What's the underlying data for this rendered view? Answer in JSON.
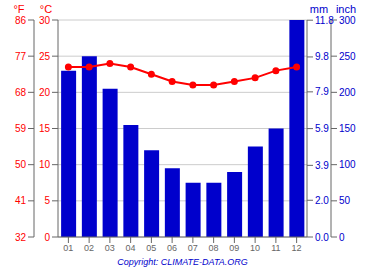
{
  "chart_data": {
    "type": "bar",
    "categories": [
      "01",
      "02",
      "03",
      "04",
      "05",
      "06",
      "07",
      "08",
      "09",
      "10",
      "11",
      "12"
    ],
    "series": [
      {
        "type": "bar",
        "color": "#0000cc",
        "axis": "y2",
        "values": [
          230,
          250,
          205,
          155,
          120,
          95,
          75,
          75,
          90,
          125,
          150,
          300
        ]
      },
      {
        "type": "line",
        "color": "#ff0000",
        "marker": "circle",
        "values": [
          23.5,
          23.5,
          24.0,
          23.5,
          22.5,
          21.5,
          21.0,
          21.0,
          21.5,
          22.0,
          23.0,
          23.5
        ]
      }
    ],
    "ylabel": "°C",
    "ylim": [
      0,
      30
    ],
    "yticks": [
      0,
      5,
      10,
      15,
      20,
      25,
      30
    ],
    "y2label": "mm",
    "y2lim": [
      0,
      300
    ],
    "y2ticks": [
      0,
      50,
      100,
      150,
      200,
      250,
      300
    ],
    "y3label": "°F",
    "y3lim": [
      32,
      86
    ],
    "y3ticks": [
      32,
      41,
      50,
      59,
      68,
      77,
      86
    ],
    "y4label": "inch",
    "y4lim": [
      0,
      11.811023622047244
    ],
    "y4ticks": [
      {
        "value": 0,
        "label": "0.0"
      },
      {
        "value": 2,
        "label": "2.0"
      },
      3.9,
      5.9,
      7.9,
      9.8,
      11.8
    ],
    "grid": true,
    "annotations": [
      {
        "text": "Copyright: CLIMATE-DATA.ORG",
        "color": "#0000cc"
      }
    ]
  }
}
